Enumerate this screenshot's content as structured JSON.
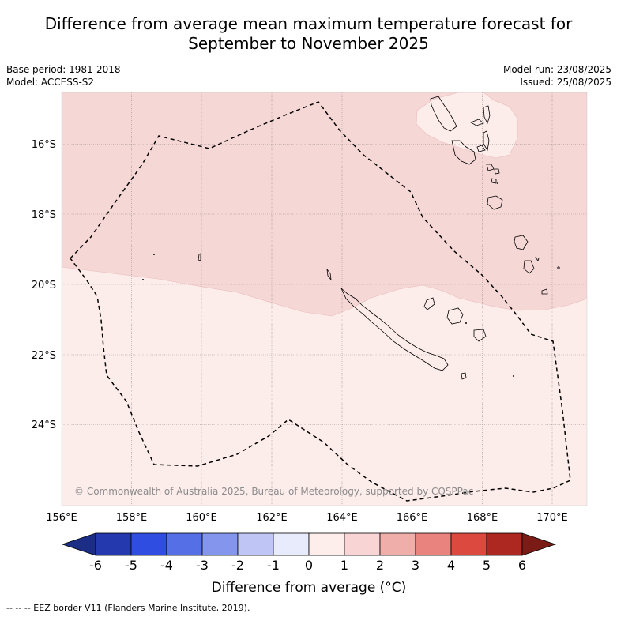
{
  "header": {
    "title_line1": "Difference from average mean maximum temperature forecast for",
    "title_line2": "September to November 2025",
    "base_period": "Base period: 1981-2018",
    "model": "Model: ACCESS-S2",
    "model_run": "Model run: 23/08/2025",
    "issued": "Issued: 25/08/2025"
  },
  "map": {
    "lon_labels": [
      "156°E",
      "158°E",
      "160°E",
      "162°E",
      "164°E",
      "166°E",
      "168°E",
      "170°E"
    ],
    "lat_labels": [
      "16°S",
      "18°S",
      "20°S",
      "22°S",
      "24°S"
    ],
    "copyright": "© Commonwealth of Australia 2025, Bureau of Meteorology, supported by COSPPac",
    "region_colors": {
      "band_1_2": "#f5d7d6",
      "band_0_1": "#fcecea"
    }
  },
  "colorbar": {
    "labels": [
      "-6",
      "-5",
      "-4",
      "-3",
      "-2",
      "-1",
      "0",
      "1",
      "2",
      "3",
      "4",
      "5",
      "6"
    ],
    "colors": [
      "#1c2d86",
      "#2339ad",
      "#2f4de0",
      "#5570e6",
      "#8395ec",
      "#bfc6f5",
      "#e8ebfb",
      "#fdeeec",
      "#f8d5d4",
      "#f0aeaa",
      "#e8847d",
      "#dc493f",
      "#ad2820",
      "#7a1c15"
    ],
    "axis_label": "Difference from average (°C)"
  },
  "footer": {
    "eez_legend": "-- -- -- EEZ border V11 (Flanders Marine Institute, 2019)."
  }
}
